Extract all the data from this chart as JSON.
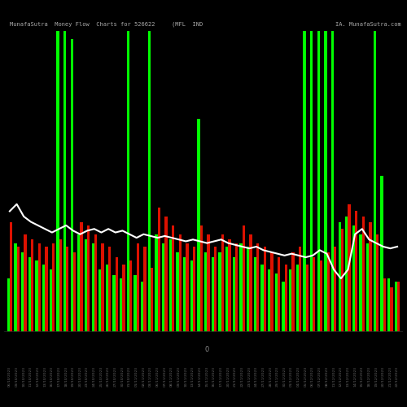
{
  "title": "MunafaSutra  Money Flow  Charts for 526622",
  "subtitle": "(MFL  IND",
  "watermark": "IA. MunafaSutra.com",
  "background_color": "#000000",
  "bar_data": [
    {
      "label": "06/10/2023",
      "green": 30,
      "red": 62
    },
    {
      "label": "09/10/2023",
      "green": 50,
      "red": 48
    },
    {
      "label": "10/10/2023",
      "green": 45,
      "red": 55
    },
    {
      "label": "11/10/2023",
      "green": 42,
      "red": 52
    },
    {
      "label": "12/10/2023",
      "green": 40,
      "red": 50
    },
    {
      "label": "13/10/2023",
      "green": 38,
      "red": 48
    },
    {
      "label": "16/10/2023",
      "green": 35,
      "red": 50
    },
    {
      "label": "17/10/2023",
      "green": 170,
      "red": 52
    },
    {
      "label": "18/10/2023",
      "green": 170,
      "red": 48
    },
    {
      "label": "19/10/2023",
      "green": 165,
      "red": 45
    },
    {
      "label": "20/10/2023",
      "green": 55,
      "red": 62
    },
    {
      "label": "23/10/2023",
      "green": 52,
      "red": 60
    },
    {
      "label": "24/10/2023",
      "green": 50,
      "red": 55
    },
    {
      "label": "25/10/2023",
      "green": 35,
      "red": 50
    },
    {
      "label": "26/10/2023",
      "green": 38,
      "red": 48
    },
    {
      "label": "27/10/2023",
      "green": 32,
      "red": 42
    },
    {
      "label": "30/10/2023",
      "green": 30,
      "red": 38
    },
    {
      "label": "31/10/2023",
      "green": 170,
      "red": 40
    },
    {
      "label": "01/11/2023",
      "green": 32,
      "red": 50
    },
    {
      "label": "02/11/2023",
      "green": 28,
      "red": 48
    },
    {
      "label": "03/11/2023",
      "green": 170,
      "red": 36
    },
    {
      "label": "06/11/2023",
      "green": 55,
      "red": 70
    },
    {
      "label": "07/11/2023",
      "green": 50,
      "red": 65
    },
    {
      "label": "08/11/2023",
      "green": 52,
      "red": 60
    },
    {
      "label": "09/11/2023",
      "green": 45,
      "red": 55
    },
    {
      "label": "10/11/2023",
      "green": 42,
      "red": 50
    },
    {
      "label": "13/11/2023",
      "green": 40,
      "red": 48
    },
    {
      "label": "14/11/2023",
      "green": 120,
      "red": 60
    },
    {
      "label": "15/11/2023",
      "green": 45,
      "red": 55
    },
    {
      "label": "16/11/2023",
      "green": 42,
      "red": 48
    },
    {
      "label": "17/11/2023",
      "green": 45,
      "red": 55
    },
    {
      "label": "20/11/2023",
      "green": 48,
      "red": 52
    },
    {
      "label": "21/11/2023",
      "green": 42,
      "red": 50
    },
    {
      "label": "22/11/2023",
      "green": 50,
      "red": 60
    },
    {
      "label": "23/11/2023",
      "green": 48,
      "red": 55
    },
    {
      "label": "24/11/2023",
      "green": 42,
      "red": 50
    },
    {
      "label": "27/11/2023",
      "green": 38,
      "red": 48
    },
    {
      "label": "28/11/2023",
      "green": 35,
      "red": 45
    },
    {
      "label": "29/11/2023",
      "green": 33,
      "red": 42
    },
    {
      "label": "30/11/2023",
      "green": 28,
      "red": 38
    },
    {
      "label": "01/12/2023",
      "green": 35,
      "red": 45
    },
    {
      "label": "04/12/2023",
      "green": 38,
      "red": 48
    },
    {
      "label": "05/12/2023",
      "green": 170,
      "red": 38
    },
    {
      "label": "06/12/2023",
      "green": 170,
      "red": 42
    },
    {
      "label": "07/12/2023",
      "green": 170,
      "red": 40
    },
    {
      "label": "08/12/2023",
      "green": 170,
      "red": 45
    },
    {
      "label": "11/12/2023",
      "green": 170,
      "red": 48
    },
    {
      "label": "12/12/2023",
      "green": 62,
      "red": 58
    },
    {
      "label": "13/12/2023",
      "green": 65,
      "red": 72
    },
    {
      "label": "14/12/2023",
      "green": 60,
      "red": 68
    },
    {
      "label": "15/12/2023",
      "green": 55,
      "red": 65
    },
    {
      "label": "18/12/2023",
      "green": 50,
      "red": 62
    },
    {
      "label": "19/12/2023",
      "green": 170,
      "red": 55
    },
    {
      "label": "20/12/2023",
      "green": 88,
      "red": 30
    },
    {
      "label": "21/12/2023",
      "green": 30,
      "red": 25
    },
    {
      "label": "22/12/2023",
      "green": 28,
      "red": 28
    }
  ],
  "line_data": [
    68,
    72,
    65,
    62,
    60,
    58,
    56,
    58,
    60,
    57,
    55,
    57,
    58,
    56,
    58,
    56,
    57,
    55,
    53,
    55,
    54,
    53,
    54,
    53,
    52,
    51,
    52,
    51,
    50,
    51,
    52,
    50,
    49,
    48,
    47,
    48,
    46,
    45,
    44,
    43,
    44,
    43,
    42,
    43,
    46,
    44,
    35,
    30,
    35,
    55,
    58,
    52,
    50,
    48,
    47,
    48
  ],
  "green_color": "#00ff00",
  "red_color": "#dd1100",
  "line_color": "#ffffff",
  "title_color": "#aaaaaa",
  "tick_label_color": "#666666",
  "zero_label_color": "#888888"
}
